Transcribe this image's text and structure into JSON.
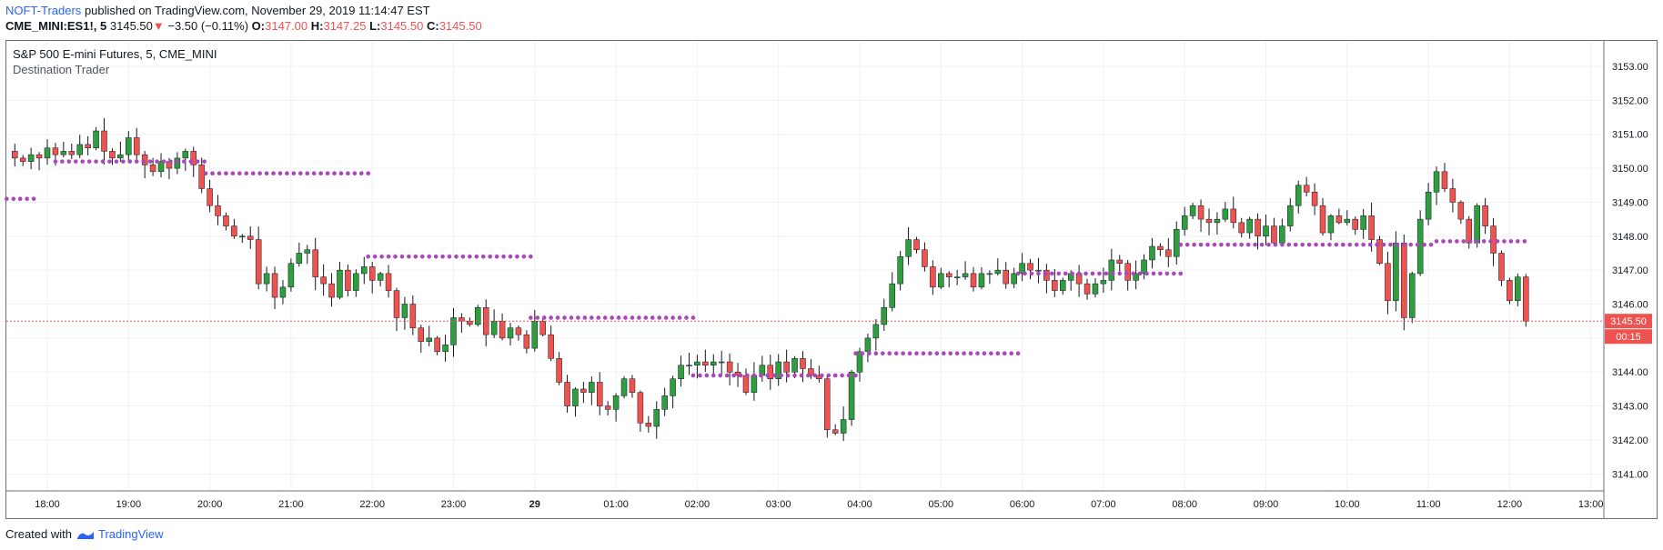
{
  "header": {
    "author": "NOFT-Traders",
    "published_text": "published on TradingView.com, November 29, 2019 11:14:47 EST",
    "symbol": "CME_MINI:ES1!, 5",
    "last": "3145.50",
    "change": "−3.50 (−0.11%)",
    "o_label": "O:",
    "o_value": "3147.00",
    "h_label": "H:",
    "h_value": "3147.25",
    "l_label": "L:",
    "l_value": "3145.50",
    "c_label": "C:",
    "c_value": "3145.50"
  },
  "chart_overlay": {
    "title": "S&P 500 E-mini Futures, 5, CME_MINI",
    "subtitle": "Destination Trader"
  },
  "price_label": {
    "value": "3145.50",
    "countdown": "00:15"
  },
  "footer": {
    "created_with": "Created with",
    "brand": "TradingView"
  },
  "colors": {
    "up": "#26a69a",
    "up_body": "#2e9e3e",
    "down": "#ef5350",
    "dots": "#ab47bc",
    "grid": "#eef1f6",
    "price_line": "#ef5350"
  },
  "chart_data": {
    "type": "candlestick",
    "ylim": [
      3140.5,
      3153.75
    ],
    "yticks": [
      "3141.00",
      "3142.00",
      "3143.00",
      "3144.00",
      "3145.00",
      "3146.00",
      "3147.00",
      "3148.00",
      "3149.00",
      "3150.00",
      "3151.00",
      "3152.00",
      "3153.00"
    ],
    "xticks": [
      "18:00",
      "19:00",
      "20:00",
      "21:00",
      "22:00",
      "23:00",
      "29",
      "01:00",
      "02:00",
      "03:00",
      "04:00",
      "05:00",
      "06:00",
      "07:00",
      "08:00",
      "09:00",
      "10:00",
      "11:00",
      "12:00",
      "13:00"
    ],
    "last_price": 3145.5,
    "close_path": [
      [
        17.5,
        3150.5
      ],
      [
        17.6,
        3150.3
      ],
      [
        17.7,
        3150.2
      ],
      [
        17.8,
        3150.4
      ],
      [
        17.9,
        3150.3
      ],
      [
        18.0,
        3150.6
      ],
      [
        18.1,
        3150.4
      ],
      [
        18.2,
        3150.5
      ],
      [
        18.3,
        3150.4
      ],
      [
        18.4,
        3150.7
      ],
      [
        18.5,
        3150.6
      ],
      [
        18.6,
        3151.1
      ],
      [
        18.7,
        3150.5
      ],
      [
        18.8,
        3150.3
      ],
      [
        18.9,
        3150.4
      ],
      [
        19.0,
        3150.9
      ],
      [
        19.1,
        3150.4
      ],
      [
        19.2,
        3150.1
      ],
      [
        19.3,
        3149.9
      ],
      [
        19.4,
        3150.2
      ],
      [
        19.5,
        3150.0
      ],
      [
        19.6,
        3150.3
      ],
      [
        19.7,
        3150.5
      ],
      [
        19.8,
        3150.1
      ],
      [
        19.9,
        3149.4
      ],
      [
        20.0,
        3148.9
      ],
      [
        20.1,
        3148.6
      ],
      [
        20.2,
        3148.3
      ],
      [
        20.3,
        3148.0
      ],
      [
        20.4,
        3148.0
      ],
      [
        20.5,
        3147.9
      ],
      [
        20.6,
        3146.6
      ],
      [
        20.7,
        3146.9
      ],
      [
        20.8,
        3146.2
      ],
      [
        20.9,
        3146.5
      ],
      [
        21.0,
        3147.2
      ],
      [
        21.1,
        3147.5
      ],
      [
        21.2,
        3147.6
      ],
      [
        21.3,
        3146.8
      ],
      [
        21.4,
        3146.6
      ],
      [
        21.5,
        3146.2
      ],
      [
        21.6,
        3147.0
      ],
      [
        21.7,
        3146.4
      ],
      [
        21.8,
        3146.9
      ],
      [
        21.9,
        3147.1
      ],
      [
        22.0,
        3146.7
      ],
      [
        22.1,
        3146.9
      ],
      [
        22.2,
        3146.4
      ],
      [
        22.3,
        3145.6
      ],
      [
        22.4,
        3146.0
      ],
      [
        22.5,
        3145.3
      ],
      [
        22.6,
        3144.9
      ],
      [
        22.7,
        3145.0
      ],
      [
        22.8,
        3144.6
      ],
      [
        22.9,
        3144.8
      ],
      [
        23.0,
        3145.6
      ],
      [
        23.1,
        3145.5
      ],
      [
        23.2,
        3145.4
      ],
      [
        23.3,
        3145.9
      ],
      [
        23.4,
        3145.1
      ],
      [
        23.5,
        3145.5
      ],
      [
        23.6,
        3145.0
      ],
      [
        23.7,
        3145.3
      ],
      [
        23.8,
        3145.1
      ],
      [
        23.9,
        3144.7
      ],
      [
        24.0,
        3145.5
      ],
      [
        24.1,
        3145.1
      ],
      [
        24.2,
        3144.4
      ],
      [
        24.3,
        3143.7
      ],
      [
        24.4,
        3143.0
      ],
      [
        24.5,
        3143.5
      ],
      [
        24.6,
        3143.4
      ],
      [
        24.7,
        3143.7
      ],
      [
        24.8,
        3143.0
      ],
      [
        24.9,
        3142.9
      ],
      [
        25.0,
        3143.3
      ],
      [
        25.1,
        3143.8
      ],
      [
        25.2,
        3143.4
      ],
      [
        25.3,
        3142.5
      ],
      [
        25.4,
        3142.4
      ],
      [
        25.5,
        3142.9
      ],
      [
        25.6,
        3143.3
      ],
      [
        25.7,
        3143.8
      ],
      [
        25.8,
        3144.2
      ],
      [
        25.9,
        3144.2
      ],
      [
        26.0,
        3144.3
      ],
      [
        26.1,
        3144.2
      ],
      [
        26.2,
        3144.3
      ],
      [
        26.3,
        3144.3
      ],
      [
        26.4,
        3144.0
      ],
      [
        26.5,
        3143.9
      ],
      [
        26.6,
        3143.4
      ],
      [
        26.7,
        3143.9
      ],
      [
        26.8,
        3144.2
      ],
      [
        26.9,
        3143.8
      ],
      [
        27.0,
        3144.3
      ],
      [
        27.1,
        3144.0
      ],
      [
        27.2,
        3144.4
      ],
      [
        27.3,
        3144.1
      ],
      [
        27.4,
        3143.9
      ],
      [
        27.5,
        3143.8
      ],
      [
        27.6,
        3142.3
      ],
      [
        27.7,
        3142.2
      ],
      [
        27.8,
        3142.6
      ],
      [
        27.9,
        3144.0
      ],
      [
        28.0,
        3144.6
      ],
      [
        28.1,
        3145.0
      ],
      [
        28.2,
        3145.4
      ],
      [
        28.3,
        3145.9
      ],
      [
        28.4,
        3146.6
      ],
      [
        28.5,
        3147.4
      ],
      [
        28.6,
        3147.9
      ],
      [
        28.7,
        3147.6
      ],
      [
        28.8,
        3147.1
      ],
      [
        28.9,
        3146.5
      ],
      [
        29.0,
        3146.9
      ],
      [
        29.1,
        3146.8
      ],
      [
        29.2,
        3146.8
      ],
      [
        29.3,
        3146.9
      ],
      [
        29.4,
        3146.5
      ],
      [
        29.5,
        3146.9
      ],
      [
        29.6,
        3146.9
      ],
      [
        29.7,
        3147.0
      ],
      [
        29.8,
        3146.6
      ],
      [
        29.9,
        3146.9
      ],
      [
        30.0,
        3147.2
      ],
      [
        30.1,
        3147.0
      ],
      [
        30.2,
        3147.0
      ],
      [
        30.3,
        3146.7
      ],
      [
        30.4,
        3146.4
      ],
      [
        30.5,
        3146.7
      ],
      [
        30.6,
        3146.9
      ],
      [
        30.7,
        3146.6
      ],
      [
        30.8,
        3146.3
      ],
      [
        30.9,
        3146.6
      ],
      [
        31.0,
        3146.7
      ],
      [
        31.1,
        3147.3
      ],
      [
        31.2,
        3147.2
      ],
      [
        31.3,
        3146.7
      ],
      [
        31.4,
        3146.9
      ],
      [
        31.5,
        3147.3
      ],
      [
        31.6,
        3147.7
      ],
      [
        31.7,
        3147.6
      ],
      [
        31.8,
        3147.4
      ],
      [
        31.9,
        3148.2
      ],
      [
        32.0,
        3148.6
      ],
      [
        32.1,
        3148.9
      ],
      [
        32.2,
        3148.5
      ],
      [
        32.3,
        3148.4
      ],
      [
        32.4,
        3148.5
      ],
      [
        32.5,
        3148.8
      ],
      [
        32.6,
        3148.4
      ],
      [
        32.7,
        3148.1
      ],
      [
        32.8,
        3148.5
      ],
      [
        32.9,
        3148.0
      ],
      [
        33.0,
        3148.3
      ],
      [
        33.1,
        3147.8
      ],
      [
        33.2,
        3148.3
      ],
      [
        33.3,
        3148.9
      ],
      [
        33.4,
        3149.5
      ],
      [
        33.5,
        3149.3
      ],
      [
        33.6,
        3148.9
      ],
      [
        33.7,
        3148.1
      ],
      [
        33.8,
        3148.6
      ],
      [
        33.9,
        3148.4
      ],
      [
        34.0,
        3148.5
      ],
      [
        34.1,
        3148.2
      ],
      [
        34.2,
        3148.6
      ],
      [
        34.3,
        3147.9
      ],
      [
        34.4,
        3147.2
      ],
      [
        34.5,
        3146.1
      ],
      [
        34.6,
        3147.8
      ],
      [
        34.7,
        3145.6
      ],
      [
        34.8,
        3146.9
      ],
      [
        34.9,
        3148.5
      ],
      [
        35.0,
        3149.3
      ],
      [
        35.1,
        3149.9
      ],
      [
        35.2,
        3149.4
      ],
      [
        35.3,
        3149.0
      ],
      [
        35.4,
        3148.5
      ],
      [
        35.5,
        3147.8
      ],
      [
        35.6,
        3148.9
      ],
      [
        35.7,
        3148.3
      ],
      [
        35.8,
        3147.5
      ],
      [
        35.9,
        3146.7
      ],
      [
        36.0,
        3146.1
      ],
      [
        36.1,
        3146.8
      ],
      [
        36.2,
        3145.5
      ]
    ],
    "dot_segments": [
      {
        "x0": 17.5,
        "x1": 17.9,
        "y": 3149.1
      },
      {
        "x0": 18.1,
        "x1": 19.95,
        "y": 3150.2
      },
      {
        "x0": 19.95,
        "x1": 21.95,
        "y": 3149.85
      },
      {
        "x0": 21.95,
        "x1": 23.95,
        "y": 3147.4
      },
      {
        "x0": 23.95,
        "x1": 25.95,
        "y": 3145.6
      },
      {
        "x0": 25.95,
        "x1": 27.95,
        "y": 3143.9
      },
      {
        "x0": 27.95,
        "x1": 29.95,
        "y": 3144.55
      },
      {
        "x0": 29.95,
        "x1": 31.95,
        "y": 3146.9
      },
      {
        "x0": 31.95,
        "x1": 33.95,
        "y": 3147.75
      },
      {
        "x0": 33.95,
        "x1": 35.1,
        "y": 3147.75
      },
      {
        "x0": 35.1,
        "x1": 36.25,
        "y": 3147.85
      }
    ]
  }
}
